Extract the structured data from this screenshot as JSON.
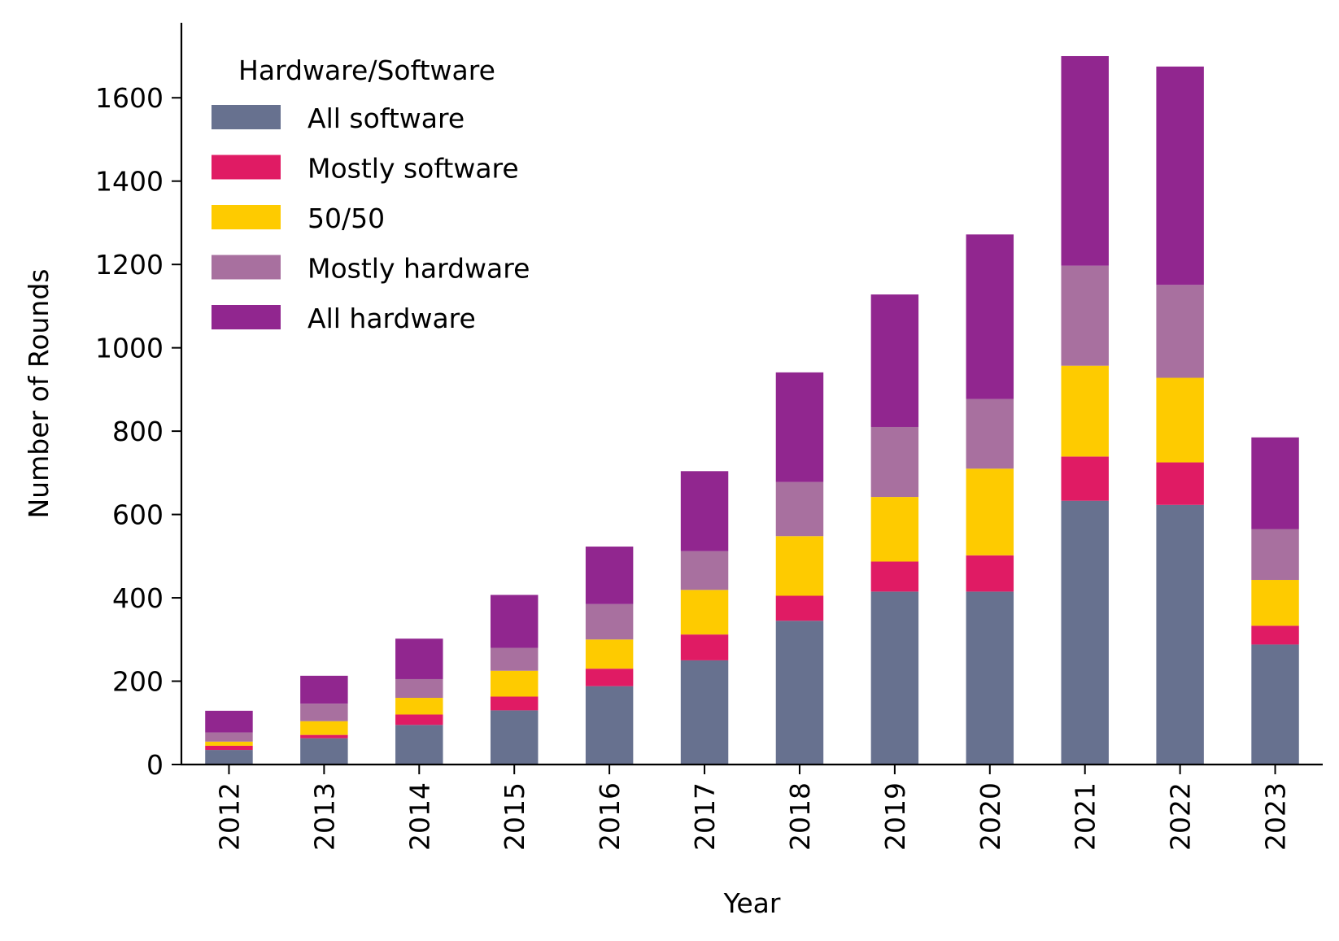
{
  "chart_data": {
    "type": "bar",
    "stacked": true,
    "title": "",
    "xlabel": "Year",
    "ylabel": "Number of Rounds",
    "ylim": [
      0,
      1780
    ],
    "yticks": [
      0,
      200,
      400,
      600,
      800,
      1000,
      1200,
      1400,
      1600
    ],
    "categories": [
      "2012",
      "2013",
      "2014",
      "2015",
      "2016",
      "2017",
      "2018",
      "2019",
      "2020",
      "2021",
      "2022",
      "2023"
    ],
    "legend": {
      "title": "Hardware/Software",
      "position": "top-left"
    },
    "series": [
      {
        "name": "All software",
        "color": "#67718F",
        "values": [
          35,
          63,
          95,
          130,
          188,
          250,
          345,
          415,
          415,
          633,
          623,
          288
        ]
      },
      {
        "name": "Mostly software",
        "color": "#E01B64",
        "values": [
          10,
          8,
          25,
          33,
          42,
          62,
          60,
          72,
          87,
          106,
          102,
          45
        ]
      },
      {
        "name": "50/50",
        "color": "#FECB00",
        "values": [
          10,
          33,
          40,
          62,
          70,
          107,
          143,
          155,
          208,
          218,
          203,
          110
        ]
      },
      {
        "name": "Mostly hardware",
        "color": "#A8709F",
        "values": [
          22,
          42,
          45,
          55,
          85,
          93,
          130,
          168,
          167,
          240,
          223,
          122
        ]
      },
      {
        "name": "All hardware",
        "color": "#91268F",
        "values": [
          52,
          67,
          97,
          127,
          138,
          192,
          263,
          318,
          395,
          503,
          524,
          220
        ]
      }
    ]
  }
}
